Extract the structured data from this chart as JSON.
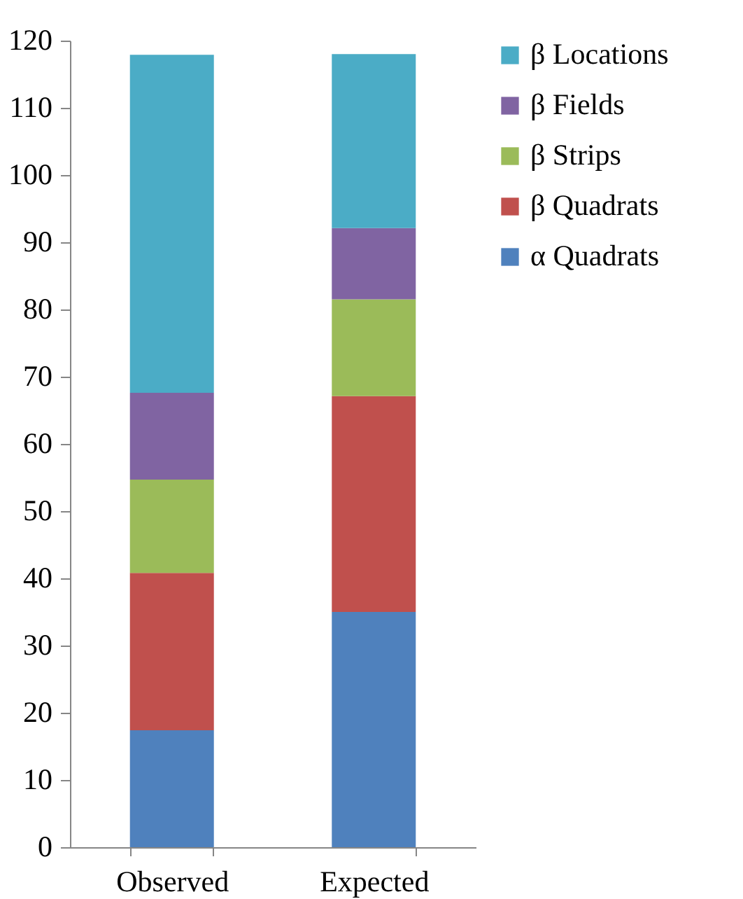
{
  "chart_data": {
    "type": "bar",
    "stacked": true,
    "categories": [
      "Observed",
      "Expected"
    ],
    "series": [
      {
        "name": "α Quadrats",
        "color": "#4f81bd",
        "values": [
          17.4,
          35.0
        ]
      },
      {
        "name": "β Quadrats",
        "color": "#c0504d",
        "values": [
          23.4,
          32.1
        ]
      },
      {
        "name": "β Strips",
        "color": "#9bbb59",
        "values": [
          13.9,
          14.4
        ]
      },
      {
        "name": "β Fields",
        "color": "#8064a2",
        "values": [
          12.9,
          10.6
        ]
      },
      {
        "name": "β Locations",
        "color": "#4bacc6",
        "values": [
          50.3,
          25.9
        ]
      }
    ],
    "ylim": [
      0,
      120
    ],
    "yticks": [
      0,
      10,
      20,
      30,
      40,
      50,
      60,
      70,
      80,
      90,
      100,
      110,
      120
    ],
    "grid": false,
    "legend": "right"
  }
}
